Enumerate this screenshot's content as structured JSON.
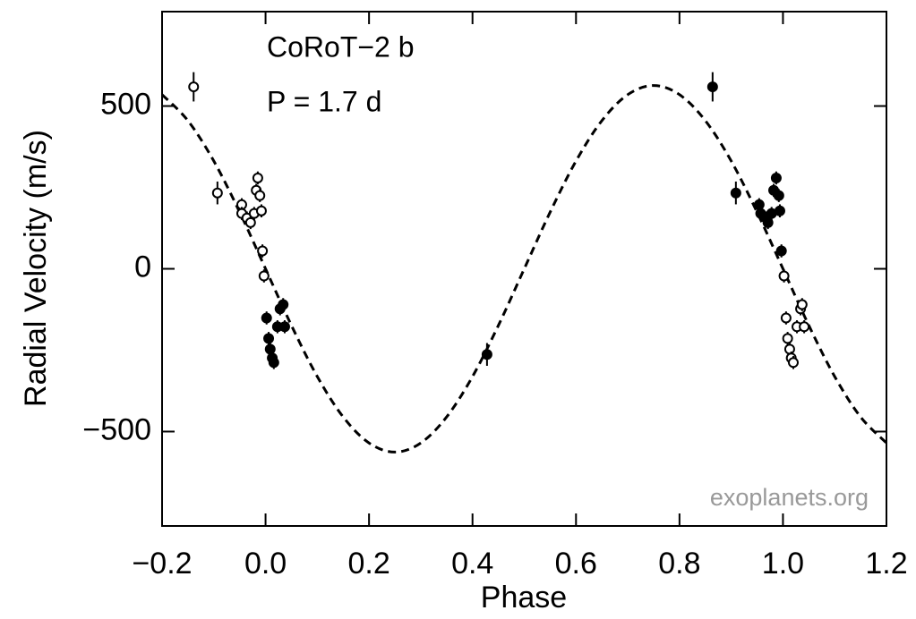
{
  "chart_data": {
    "type": "scatter",
    "annotations": [
      "CoRoT−2 b",
      "P = 1.7 d"
    ],
    "credit": "exoplanets.org",
    "x_label": "Phase",
    "y_label": "Radial Velocity  (m/s)",
    "xlim": [
      -0.2,
      1.2
    ],
    "ylim": [
      -790,
      790
    ],
    "xticks": [
      {
        "value": -0.2,
        "label": "−0.2"
      },
      {
        "value": 0,
        "label": "0.0"
      },
      {
        "value": 0.2,
        "label": "0.2"
      },
      {
        "value": 0.4,
        "label": "0.4"
      },
      {
        "value": 0.6,
        "label": "0.6"
      },
      {
        "value": 0.8,
        "label": "0.8"
      },
      {
        "value": 1,
        "label": "1.0"
      },
      {
        "value": 1.2,
        "label": "1.2"
      }
    ],
    "yticks": [
      {
        "value": -500,
        "label": "−500"
      },
      0,
      500
    ],
    "series": [
      {
        "marker": "open",
        "color": "#000000",
        "x": [
          -0.139,
          -0.093,
          -0.046,
          -0.046,
          -0.036,
          -0.029,
          -0.022,
          -0.018,
          -0.015,
          -0.011,
          -0.008,
          -0.006,
          -0.003,
          1.002,
          1.006,
          1.009,
          1.013,
          1.016,
          1.02,
          1.027,
          1.034,
          1.037,
          1.041
        ],
        "values": [
          559,
          233,
          197,
          170,
          156,
          142,
          170,
          241,
          279,
          225,
          178,
          55,
          -22,
          -22,
          -151,
          -214,
          -247,
          -274,
          -288,
          -178,
          -123,
          -110,
          -178
        ],
        "errors": [
          45,
          35,
          20,
          20,
          20,
          20,
          20,
          20,
          20,
          20,
          20,
          20,
          20,
          20,
          20,
          20,
          20,
          20,
          20,
          20,
          20,
          20,
          20
        ]
      },
      {
        "marker": "filled",
        "color": "#000000",
        "x": [
          0.002,
          0.006,
          0.009,
          0.013,
          0.016,
          0.023,
          0.028,
          0.034,
          0.037,
          0.428,
          0.864,
          0.909,
          0.954,
          0.957,
          0.968,
          0.971,
          0.978,
          0.982,
          0.987,
          0.992,
          0.994,
          0.997
        ],
        "values": [
          -151,
          -214,
          -247,
          -274,
          -288,
          -178,
          -123,
          -110,
          -178,
          -263,
          559,
          233,
          197,
          170,
          156,
          142,
          170,
          241,
          279,
          225,
          178,
          55
        ],
        "errors": [
          20,
          20,
          20,
          20,
          20,
          20,
          20,
          20,
          20,
          35,
          45,
          35,
          20,
          20,
          20,
          20,
          20,
          20,
          20,
          20,
          20,
          20
        ]
      }
    ],
    "model": {
      "style": "dashed",
      "color": "#000000",
      "x": [
        -0.2,
        -0.15,
        -0.1,
        -0.05,
        0,
        0.05,
        0.1,
        0.15,
        0.2,
        0.25,
        0.3,
        0.35,
        0.4,
        0.45,
        0.5,
        0.55,
        0.6,
        0.65,
        0.7,
        0.75,
        0.8,
        0.85,
        0.9,
        0.95,
        1,
        1.05,
        1.1,
        1.15,
        1.2
      ],
      "values": [
        535,
        455,
        331,
        174,
        0,
        -174,
        -331,
        -455,
        -535,
        -563,
        -535,
        -455,
        -331,
        -174,
        0,
        174,
        331,
        455,
        535,
        563,
        535,
        455,
        331,
        174,
        0,
        -174,
        -331,
        -455,
        -535
      ]
    }
  }
}
